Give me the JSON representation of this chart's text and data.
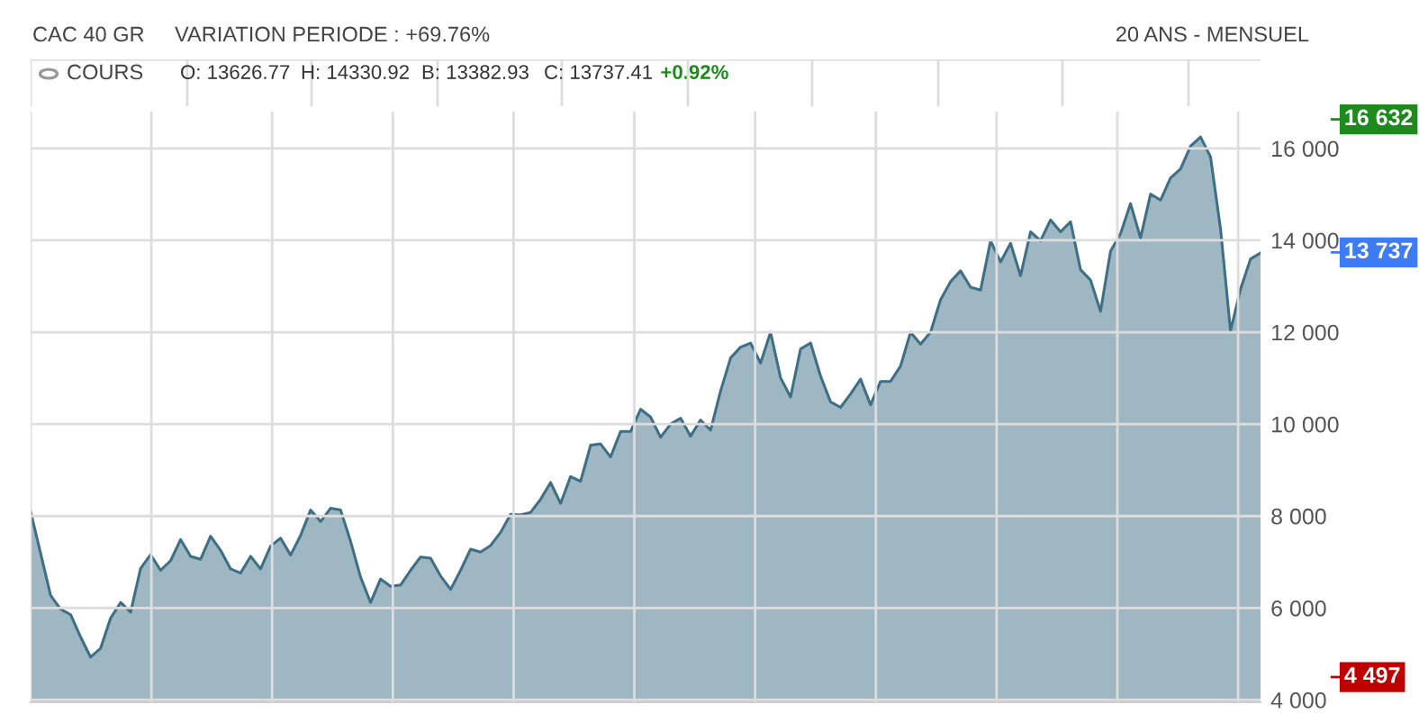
{
  "chart_data": {
    "type": "area",
    "title": "CAC 40 GR",
    "subtitle": "VARIATION PERIODE : +69.76%",
    "annotations": [
      "20 ANS - MENSUEL",
      "COURS",
      "O: 13626.77",
      "H: 14330.92",
      "B: 13382.93",
      "C: 13737.41",
      "+0.92%"
    ],
    "categories": [
      null,
      null,
      null,
      null,
      null,
      null,
      null,
      null,
      null,
      null,
      null,
      null,
      null,
      null,
      null,
      null,
      null,
      null,
      null,
      null,
      null,
      null,
      null,
      null,
      null,
      null,
      null,
      null,
      null,
      null,
      null,
      null,
      null,
      null,
      null,
      null,
      null,
      null,
      null,
      null,
      null,
      null,
      null,
      null,
      null,
      null,
      null,
      null,
      null,
      null,
      null,
      null,
      null,
      null,
      null,
      null,
      null,
      null,
      null,
      null,
      null,
      null,
      null,
      null,
      null,
      null,
      null,
      null,
      null,
      null,
      null,
      null,
      null,
      null,
      null,
      null,
      null,
      null,
      null,
      null,
      null,
      null,
      null,
      null,
      null,
      null,
      null,
      null,
      null,
      null,
      null,
      null,
      null,
      null,
      null,
      null,
      null,
      null,
      null,
      null,
      null,
      null,
      null,
      null,
      null,
      null,
      null,
      null,
      null,
      null,
      null,
      null,
      null,
      null,
      null,
      null,
      null,
      null,
      null,
      null,
      null,
      null,
      null,
      null
    ],
    "series": [
      {
        "color": "#3f6f85",
        "values": [
          8100,
          7190,
          6275,
          5975,
          5855,
          5370,
          4930,
          5125,
          5780,
          6120,
          5910,
          6860,
          7160,
          6820,
          7030,
          7490,
          7125,
          7060,
          7560,
          7255,
          6850,
          6760,
          7125,
          6850,
          7345,
          7520,
          7150,
          7580,
          8130,
          7880,
          8170,
          8130,
          7450,
          6670,
          6120,
          6630,
          6470,
          6500,
          6820,
          7110,
          7085,
          6695,
          6405,
          6820,
          7280,
          7215,
          7360,
          7645,
          8040,
          8025,
          8080,
          8365,
          8730,
          8275,
          8860,
          8755,
          9540,
          9570,
          9285,
          9840,
          9840,
          10325,
          10155,
          9715,
          10000,
          10130,
          9740,
          10090,
          9870,
          10720,
          11440,
          11675,
          11765,
          11330,
          12000,
          11010,
          10590,
          11635,
          11765,
          11045,
          10485,
          10365,
          10655,
          10980,
          10420,
          10930,
          10930,
          11265,
          12000,
          11740,
          12000,
          12705,
          13100,
          13335,
          12980,
          12915,
          13990,
          13530,
          13935,
          13230,
          14185,
          13990,
          14445,
          14185,
          14405,
          13360,
          13135,
          12455,
          13765,
          14145,
          14800,
          14050,
          15005,
          14875,
          15360,
          15555,
          16050,
          16250,
          15815,
          14250,
          12030,
          12940,
          13595,
          13725
        ]
      }
    ],
    "ylim": [
      3950,
      16800
    ],
    "yticks": [
      {
        "value": 4000,
        "label": "4 000"
      },
      {
        "value": 6000,
        "label": "6 000"
      },
      {
        "value": 8000,
        "label": "8 000"
      },
      {
        "value": 10000,
        "label": "10 000"
      },
      {
        "value": 12000,
        "label": "12 000"
      },
      {
        "value": 14000,
        "label": "14 000"
      },
      {
        "value": 16000,
        "label": "16 000"
      }
    ],
    "grid": true,
    "ref_lines": [
      {
        "axis": "y",
        "value": 16632,
        "label": "16 632",
        "color": "#1e8a1e"
      },
      {
        "axis": "y",
        "value": 13737,
        "label": "13 737",
        "color": "#3d7cf5"
      },
      {
        "axis": "y",
        "value": 4497,
        "label": "4 497",
        "color": "#c00000"
      }
    ]
  }
}
